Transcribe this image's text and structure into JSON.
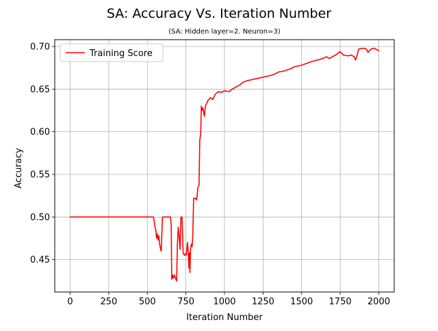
{
  "chart_data": {
    "type": "line",
    "title": "SA: Accuracy Vs. Iteration Number",
    "subtitle": "(SA: Hidden layer=2. Neuron=3)",
    "xlabel": "Iteration Number",
    "ylabel": "Accuracy",
    "xlim": [
      -100,
      2100
    ],
    "ylim": [
      0.412,
      0.708
    ],
    "xticks": [
      0,
      250,
      500,
      750,
      1000,
      1250,
      1500,
      1750,
      2000
    ],
    "yticks": [
      0.45,
      0.5,
      0.55,
      0.6,
      0.65,
      0.7
    ],
    "xtick_labels": [
      "0",
      "250",
      "500",
      "750",
      "1000",
      "1250",
      "1500",
      "1750",
      "2000"
    ],
    "ytick_labels": [
      "0.45",
      "0.50",
      "0.55",
      "0.60",
      "0.65",
      "0.70"
    ],
    "grid": true,
    "legend_position": "upper-left",
    "series": [
      {
        "name": "Training Score",
        "color": "#ff0000",
        "x": [
          0,
          540,
          548,
          555,
          560,
          565,
          570,
          575,
          578,
          585,
          590,
          598,
          602,
          610,
          620,
          640,
          650,
          655,
          658,
          663,
          668,
          675,
          685,
          690,
          695,
          700,
          705,
          712,
          718,
          725,
          732,
          740,
          748,
          752,
          760,
          765,
          770,
          773,
          776,
          780,
          785,
          790,
          795,
          800,
          810,
          820,
          828,
          835,
          840,
          846,
          850,
          855,
          860,
          870,
          875,
          880,
          885,
          890,
          895,
          900,
          910,
          925,
          940,
          960,
          975,
          990,
          1000,
          1030,
          1050,
          1080,
          1100,
          1120,
          1150,
          1175,
          1200,
          1250,
          1300,
          1330,
          1350,
          1380,
          1400,
          1430,
          1450,
          1500,
          1530,
          1560,
          1580,
          1600,
          1620,
          1640,
          1660,
          1680,
          1700,
          1720,
          1735,
          1750,
          1770,
          1800,
          1820,
          1840,
          1850,
          1860,
          1870,
          1900,
          1920,
          1930,
          1950,
          1970,
          2000
        ],
        "y": [
          0.5,
          0.5,
          0.49,
          0.485,
          0.475,
          0.48,
          0.473,
          0.478,
          0.47,
          0.463,
          0.46,
          0.5,
          0.5,
          0.5,
          0.5,
          0.5,
          0.5,
          0.49,
          0.427,
          0.432,
          0.428,
          0.432,
          0.427,
          0.425,
          0.468,
          0.488,
          0.48,
          0.462,
          0.5,
          0.5,
          0.458,
          0.455,
          0.457,
          0.455,
          0.47,
          0.46,
          0.44,
          0.458,
          0.435,
          0.462,
          0.468,
          0.465,
          0.48,
          0.522,
          0.522,
          0.52,
          0.535,
          0.537,
          0.59,
          0.598,
          0.63,
          0.625,
          0.628,
          0.618,
          0.628,
          0.632,
          0.633,
          0.636,
          0.637,
          0.638,
          0.64,
          0.638,
          0.644,
          0.647,
          0.646,
          0.647,
          0.648,
          0.647,
          0.65,
          0.653,
          0.655,
          0.658,
          0.66,
          0.661,
          0.662,
          0.664,
          0.666,
          0.668,
          0.67,
          0.671,
          0.672,
          0.674,
          0.676,
          0.678,
          0.68,
          0.682,
          0.683,
          0.684,
          0.685,
          0.686,
          0.688,
          0.686,
          0.688,
          0.69,
          0.692,
          0.694,
          0.69,
          0.689,
          0.69,
          0.688,
          0.684,
          0.69,
          0.697,
          0.698,
          0.697,
          0.693,
          0.697,
          0.698,
          0.695
        ]
      }
    ]
  }
}
